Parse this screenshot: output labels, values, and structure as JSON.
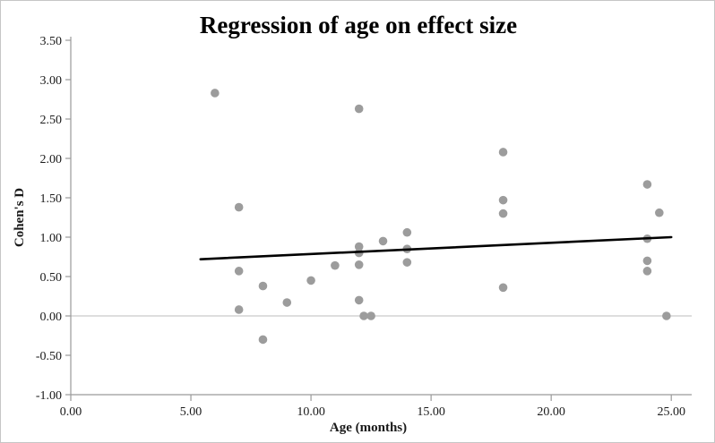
{
  "chart_data": {
    "type": "scatter",
    "title": "Regression of age on effect size",
    "xlabel": "Age (months)",
    "ylabel": "Cohen's D",
    "xlim": [
      0,
      25.85
    ],
    "ylim": [
      -1.0,
      3.5
    ],
    "x_ticks": [
      0,
      5,
      10,
      15,
      20,
      25
    ],
    "x_tick_labels": [
      "0.00",
      "5.00",
      "10.00",
      "15.00",
      "20.00",
      "25.00"
    ],
    "y_ticks": [
      -1.0,
      -0.5,
      0.0,
      0.5,
      1.0,
      1.5,
      2.0,
      2.5,
      3.0,
      3.5
    ],
    "y_tick_labels": [
      "-1.00",
      "-0.50",
      "0.00",
      "0.50",
      "1.00",
      "1.50",
      "2.00",
      "2.50",
      "3.00",
      "3.50"
    ],
    "grid": false,
    "legend": "none",
    "points": [
      [
        6.0,
        2.83
      ],
      [
        7.0,
        1.38
      ],
      [
        7.0,
        0.57
      ],
      [
        7.0,
        0.08
      ],
      [
        8.0,
        0.38
      ],
      [
        8.0,
        -0.3
      ],
      [
        9.0,
        0.17
      ],
      [
        10.0,
        0.45
      ],
      [
        11.0,
        0.64
      ],
      [
        12.0,
        2.63
      ],
      [
        12.0,
        0.88
      ],
      [
        12.0,
        0.8
      ],
      [
        12.0,
        0.65
      ],
      [
        12.0,
        0.2
      ],
      [
        12.5,
        0.0
      ],
      [
        13.0,
        0.95
      ],
      [
        14.0,
        1.06
      ],
      [
        14.0,
        0.85
      ],
      [
        14.0,
        0.68
      ],
      [
        18.0,
        2.08
      ],
      [
        18.0,
        1.47
      ],
      [
        18.0,
        1.3
      ],
      [
        18.0,
        0.36
      ],
      [
        24.0,
        1.67
      ],
      [
        24.0,
        0.98
      ],
      [
        24.0,
        0.7
      ],
      [
        24.0,
        0.57
      ],
      [
        24.5,
        1.31
      ],
      [
        24.8,
        0.0
      ],
      [
        12.2,
        0.0
      ]
    ],
    "trendline": {
      "x1": 5.4,
      "y1": 0.72,
      "x2": 25.0,
      "y2": 1.0
    },
    "zero_line": true,
    "colors": {
      "point": "#9c9c9c",
      "trend": "#000000",
      "axis": "#9a9a9a",
      "zero_line": "#c9c9c9",
      "title": "#000000"
    }
  }
}
